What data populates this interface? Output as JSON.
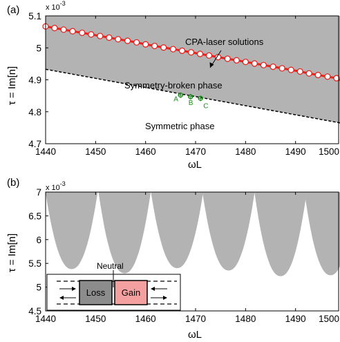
{
  "chart_data": [
    {
      "type": "line",
      "panel_label": "(a)",
      "xlabel": "ωL",
      "ylabel": "τ = Im[n]",
      "y_exponent_label": "x 10",
      "y_exponent_power": "-3",
      "xlim": [
        1440,
        1500
      ],
      "ylim": [
        4.7,
        5.1
      ],
      "x_ticks": [
        "1440",
        "1450",
        "1460",
        "1470",
        "1480",
        "1490",
        "1500"
      ],
      "y_ticks": [
        "4.7",
        "4.8",
        "4.9",
        "5",
        "5.1"
      ],
      "grid": false,
      "shaded_region": {
        "description": "gray region above the dashed boundary",
        "color": "#b3b3b3"
      },
      "boundary_line": {
        "x": [
          1440,
          1500
        ],
        "y": [
          4.933,
          4.762
        ],
        "style": "dashed"
      },
      "cpa_laser_series": {
        "x": [
          1440,
          1441.8,
          1443.6,
          1445.4,
          1447.3,
          1449.1,
          1450.9,
          1452.7,
          1454.5,
          1456.4,
          1458.2,
          1460,
          1461.8,
          1463.6,
          1465.5,
          1467.3,
          1469.1,
          1470.9,
          1472.7,
          1474.5,
          1476.4,
          1478.2,
          1480,
          1481.8,
          1483.6,
          1485.5,
          1487.3,
          1489.1,
          1490.9,
          1492.7,
          1494.5,
          1496.4,
          1498.2,
          1500
        ],
        "y": [
          5.067,
          5.062,
          5.057,
          5.052,
          5.047,
          5.042,
          5.037,
          5.032,
          5.027,
          5.022,
          5.017,
          5.011,
          5.006,
          5.001,
          4.996,
          4.991,
          4.986,
          4.981,
          4.976,
          4.971,
          4.966,
          4.961,
          4.956,
          4.951,
          4.946,
          4.941,
          4.936,
          4.931,
          4.926,
          4.92,
          4.915,
          4.91,
          4.905,
          4.89
        ],
        "line_color": "#e8231f",
        "marker_fill": "#ffffff"
      },
      "points": {
        "labels": [
          "A",
          "B",
          "C"
        ],
        "x": [
          1467,
          1469,
          1471
        ],
        "y": [
          4.852,
          4.847,
          4.842
        ],
        "color": "#1a8a1a"
      },
      "annotations": {
        "cpa": "CPA-laser solutions",
        "broken": "Symmetry-broken phase",
        "symmetric": "Symmetric phase"
      }
    },
    {
      "type": "area",
      "panel_label": "(b)",
      "xlabel": "ωL",
      "ylabel": "τ = Im[n]",
      "y_exponent_label": "x 10",
      "y_exponent_power": "-3",
      "xlim": [
        1440,
        1500
      ],
      "ylim": [
        4.5,
        7
      ],
      "x_ticks": [
        "1440",
        "1450",
        "1460",
        "1470",
        "1480",
        "1490",
        "1500"
      ],
      "y_ticks": [
        "4.5",
        "5",
        "5.5",
        "6",
        "6.5",
        "7"
      ],
      "grid": false,
      "color": "#b3b3b3",
      "lobes": [
        {
          "center": 1445.2,
          "bottom": 5.38
        },
        {
          "center": 1455.8,
          "bottom": 5.29
        },
        {
          "center": 1466.3,
          "bottom": 5.4
        },
        {
          "center": 1476.6,
          "bottom": 5.35
        },
        {
          "center": 1487.0,
          "bottom": 5.23
        },
        {
          "center": 1497.0,
          "bottom": 5.25
        }
      ],
      "gap_centers": [
        1440.0,
        1450.5,
        1461.0,
        1471.5,
        1481.9,
        1492.3
      ],
      "inset": {
        "neutral_label": "Neutral",
        "loss_label": "Loss",
        "gain_label": "Gain",
        "loss_color": "#8c8c8c",
        "gain_color": "#f4a0a0"
      }
    }
  ]
}
